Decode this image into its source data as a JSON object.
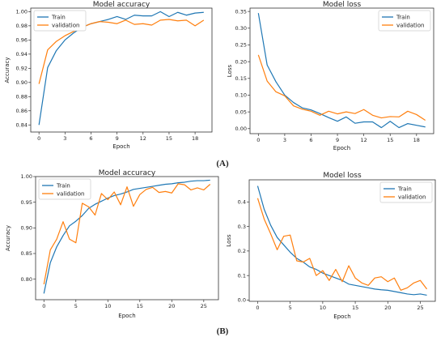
{
  "captions": [
    "(A)",
    "(B)"
  ],
  "colors": {
    "train": "#1f77b4",
    "validation": "#ff7f0e"
  },
  "chart_data": [
    {
      "type": "line",
      "title": "Model accuracy",
      "xlabel": "Epoch",
      "ylabel": "Accuracy",
      "xlim": [
        -0.95,
        19.95
      ],
      "ylim": [
        0.83,
        1.005
      ],
      "xticks": [
        0,
        3,
        6,
        9,
        12,
        15,
        18
      ],
      "yticks": [
        0.84,
        0.86,
        0.88,
        0.9,
        0.92,
        0.94,
        0.96,
        0.98,
        1.0
      ],
      "ytick_labels": [
        "0.84",
        "0.86",
        "0.88",
        "0.90",
        "0.92",
        "0.94",
        "0.96",
        "0.98",
        "1.00"
      ],
      "legend": "upper-left",
      "x": [
        0,
        1,
        2,
        3,
        4,
        5,
        6,
        7,
        8,
        9,
        10,
        11,
        12,
        13,
        14,
        15,
        16,
        17,
        18,
        19
      ],
      "series": [
        {
          "name": "Train",
          "color": "#1f77b4",
          "values": [
            0.84,
            0.921,
            0.945,
            0.96,
            0.97,
            0.978,
            0.983,
            0.986,
            0.989,
            0.993,
            0.989,
            0.995,
            0.994,
            0.994,
            1.0,
            0.993,
            0.999,
            0.995,
            0.998,
            0.999
          ]
        },
        {
          "name": "validation",
          "color": "#ff7f0e",
          "values": [
            0.898,
            0.946,
            0.958,
            0.966,
            0.972,
            0.978,
            0.983,
            0.986,
            0.985,
            0.983,
            0.988,
            0.982,
            0.983,
            0.981,
            0.988,
            0.989,
            0.987,
            0.988,
            0.98,
            0.988
          ]
        }
      ]
    },
    {
      "type": "line",
      "title": "Model loss",
      "xlabel": "Epoch",
      "ylabel": "Loss",
      "xlim": [
        -0.95,
        19.95
      ],
      "ylim": [
        -0.015,
        0.36
      ],
      "xticks": [
        0,
        3,
        6,
        9,
        12,
        15,
        18
      ],
      "yticks": [
        0.0,
        0.05,
        0.1,
        0.15,
        0.2,
        0.25,
        0.3,
        0.35
      ],
      "ytick_labels": [
        "0.00",
        "0.05",
        "0.10",
        "0.15",
        "0.20",
        "0.25",
        "0.30",
        "0.35"
      ],
      "legend": "upper-right",
      "x": [
        0,
        1,
        2,
        3,
        4,
        5,
        6,
        7,
        8,
        9,
        10,
        11,
        12,
        13,
        14,
        15,
        16,
        17,
        18,
        19
      ],
      "series": [
        {
          "name": "Train",
          "color": "#1f77b4",
          "values": [
            0.345,
            0.19,
            0.14,
            0.1,
            0.078,
            0.062,
            0.056,
            0.045,
            0.033,
            0.022,
            0.035,
            0.016,
            0.02,
            0.02,
            0.003,
            0.022,
            0.003,
            0.015,
            0.01,
            0.005
          ]
        },
        {
          "name": "validation",
          "color": "#ff7f0e",
          "values": [
            0.22,
            0.142,
            0.11,
            0.098,
            0.068,
            0.058,
            0.052,
            0.04,
            0.052,
            0.044,
            0.05,
            0.045,
            0.057,
            0.04,
            0.032,
            0.036,
            0.035,
            0.052,
            0.042,
            0.025
          ]
        }
      ]
    },
    {
      "type": "line",
      "title": "Model accuracy",
      "xlabel": "Epoch",
      "ylabel": "Accuracy",
      "xlim": [
        -1.3,
        27.3
      ],
      "ylim": [
        0.76,
        1.0
      ],
      "xticks": [
        0,
        5,
        10,
        15,
        20,
        25
      ],
      "yticks": [
        0.8,
        0.85,
        0.9,
        0.95,
        1.0
      ],
      "ytick_labels": [
        "0.80",
        "0.85",
        "0.90",
        "0.95",
        "1.00"
      ],
      "legend": "upper-left",
      "x": [
        0,
        1,
        2,
        3,
        4,
        5,
        6,
        7,
        8,
        9,
        10,
        11,
        12,
        13,
        14,
        15,
        16,
        17,
        18,
        19,
        20,
        21,
        22,
        23,
        24,
        25,
        26
      ],
      "series": [
        {
          "name": "Train",
          "color": "#1f77b4",
          "values": [
            0.772,
            0.832,
            0.863,
            0.885,
            0.904,
            0.913,
            0.924,
            0.938,
            0.946,
            0.952,
            0.958,
            0.963,
            0.966,
            0.97,
            0.975,
            0.977,
            0.979,
            0.981,
            0.983,
            0.985,
            0.986,
            0.988,
            0.989,
            0.991,
            0.992,
            0.992,
            0.993
          ]
        },
        {
          "name": "validation",
          "color": "#ff7f0e",
          "values": [
            0.79,
            0.857,
            0.878,
            0.912,
            0.878,
            0.871,
            0.948,
            0.941,
            0.925,
            0.967,
            0.955,
            0.97,
            0.945,
            0.98,
            0.942,
            0.965,
            0.975,
            0.979,
            0.969,
            0.971,
            0.968,
            0.986,
            0.984,
            0.974,
            0.978,
            0.974,
            0.985
          ]
        }
      ]
    },
    {
      "type": "line",
      "title": "Model loss",
      "xlabel": "Epoch",
      "ylabel": "Loss",
      "xlim": [
        -1.3,
        27.3
      ],
      "ylim": [
        -0.005,
        0.49
      ],
      "xticks": [
        0,
        5,
        10,
        15,
        20,
        25
      ],
      "yticks": [
        0.0,
        0.1,
        0.2,
        0.3,
        0.4
      ],
      "ytick_labels": [
        "0.0",
        "0.1",
        "0.2",
        "0.3",
        "0.4"
      ],
      "legend": "upper-right",
      "x": [
        0,
        1,
        2,
        3,
        4,
        5,
        6,
        7,
        8,
        9,
        10,
        11,
        12,
        13,
        14,
        15,
        16,
        17,
        18,
        19,
        20,
        21,
        22,
        23,
        24,
        25,
        26
      ],
      "series": [
        {
          "name": "Train",
          "color": "#1f77b4",
          "values": [
            0.465,
            0.37,
            0.305,
            0.255,
            0.225,
            0.195,
            0.17,
            0.155,
            0.135,
            0.125,
            0.11,
            0.1,
            0.09,
            0.08,
            0.065,
            0.06,
            0.055,
            0.05,
            0.045,
            0.042,
            0.04,
            0.035,
            0.03,
            0.025,
            0.022,
            0.025,
            0.02
          ]
        },
        {
          "name": "validation",
          "color": "#ff7f0e",
          "values": [
            0.415,
            0.33,
            0.27,
            0.205,
            0.26,
            0.265,
            0.16,
            0.155,
            0.17,
            0.1,
            0.12,
            0.08,
            0.125,
            0.075,
            0.14,
            0.09,
            0.07,
            0.06,
            0.09,
            0.095,
            0.075,
            0.09,
            0.04,
            0.05,
            0.07,
            0.08,
            0.045
          ]
        }
      ]
    }
  ]
}
